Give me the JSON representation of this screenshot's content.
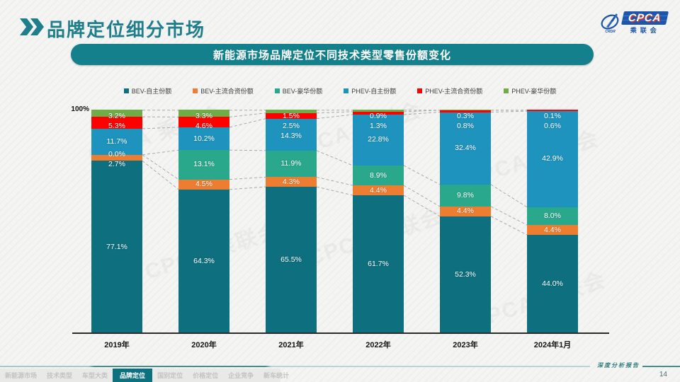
{
  "header": {
    "title": "品牌定位细分市场"
  },
  "banner": {
    "text": "新能源市场品牌定位不同技术类型零售份额变化"
  },
  "logo": {
    "acronym": "CPCA",
    "cn": "乘联会",
    "mark_text": "CRDR"
  },
  "watermark": {
    "text": "CPCA 乘联会"
  },
  "chart_data": {
    "type": "bar",
    "stacked": true,
    "title": "新能源市场品牌定位不同技术类型零售份额变化",
    "categories": [
      "2019年",
      "2020年",
      "2021年",
      "2022年",
      "2023年",
      "2024年1月"
    ],
    "series": [
      {
        "name": "BEV-自主份额",
        "color": "#0e6f7e",
        "values": [
          77.1,
          64.3,
          65.5,
          61.7,
          52.3,
          44.0
        ]
      },
      {
        "name": "BEV-主流合资份额",
        "color": "#ed7d31",
        "values": [
          2.7,
          4.5,
          4.3,
          4.4,
          4.4,
          4.4
        ]
      },
      {
        "name": "BEV-豪华份额",
        "color": "#2aa88c",
        "values": [
          0.0,
          13.1,
          11.9,
          8.9,
          9.8,
          8.0
        ]
      },
      {
        "name": "PHEV-自主份额",
        "color": "#1e93be",
        "values": [
          11.7,
          10.2,
          14.3,
          22.8,
          32.4,
          42.9
        ]
      },
      {
        "name": "PHEV-主流合资份额",
        "color": "#fe0000",
        "values": [
          5.3,
          4.6,
          2.5,
          1.3,
          0.8,
          0.6
        ]
      },
      {
        "name": "PHEV-豪华份额",
        "color": "#70ad47",
        "values": [
          3.2,
          3.3,
          1.5,
          0.9,
          0.3,
          0.1
        ]
      }
    ],
    "ylim": [
      0,
      100
    ],
    "ymax_label": "100%",
    "value_suffix": "%",
    "grid": false,
    "legend_position": "top",
    "connector_lines": "dashed"
  },
  "footer": {
    "tabs": [
      "新能源市场",
      "技术类型",
      "车型大类",
      "品牌定位",
      "国别定位",
      "价格定位",
      "企业竞争",
      "新车统计"
    ],
    "active_tab": "品牌定位",
    "report_label": "深度分析报告",
    "page_number": "14"
  }
}
